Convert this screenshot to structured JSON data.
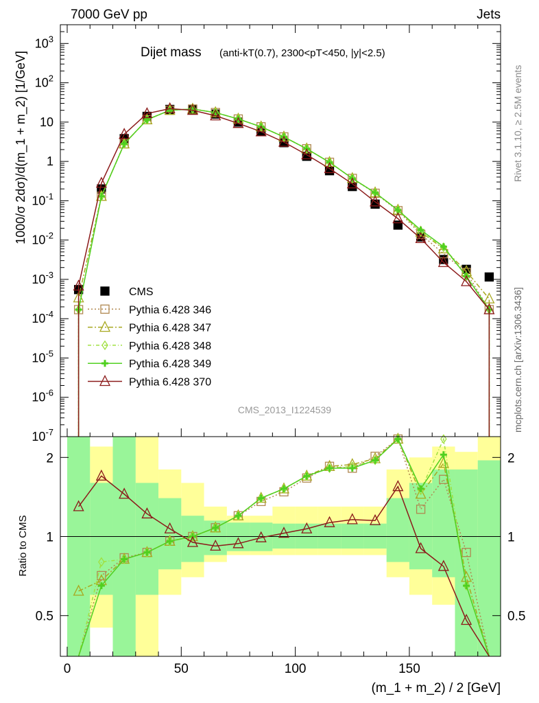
{
  "header": {
    "left": "7000 GeV pp",
    "right": "Jets"
  },
  "side": {
    "rivet": "Rivet 3.1.10, ≥ 2.5M events",
    "mcplots": "mcplots.cern.ch [arXiv:1306.3436]"
  },
  "colors": {
    "cms": "#000000",
    "p346": "#b08850",
    "p347": "#a8a820",
    "p348": "#a0e040",
    "p349": "#50d020",
    "p370": "#8b1a1a",
    "band_inner": "#99f599",
    "band_outer": "#ffff99"
  },
  "chart_data": [
    {
      "type": "line",
      "title": "Dijet mass",
      "subtitle": "(anti-kT(0.7), 2300<pT<450, |y|<2.5)",
      "watermark": "CMS_2013_I1224539",
      "xlabel": "",
      "ylabel": "1000/σ 2dσ)/d(m_1 + m_2) [1/GeV]",
      "xlim": [
        -3,
        190
      ],
      "ylim": [
        1e-07,
        3000
      ],
      "yscale": "log",
      "yticks_exp": [
        -7,
        -6,
        -5,
        -4,
        -3,
        -2,
        -1,
        0,
        1,
        2,
        3
      ],
      "x": [
        5,
        15,
        25,
        35,
        45,
        55,
        65,
        75,
        85,
        95,
        105,
        115,
        125,
        135,
        145,
        155,
        165,
        175,
        185
      ],
      "series": [
        {
          "name": "CMS",
          "style": "data",
          "values": [
            0.00055,
            0.2,
            3.8,
            14,
            21,
            21,
            16,
            10,
            5.8,
            3.0,
            1.35,
            0.58,
            0.23,
            0.082,
            0.024,
            0.012,
            0.0032,
            0.0018,
            0.00115
          ]
        },
        {
          "name": "Pythia 6.428 346",
          "style": "dotted",
          "marker": "square",
          "values": [
            0.00017,
            0.13,
            2.8,
            11.5,
            20,
            21.5,
            17.5,
            12,
            7.6,
            4.2,
            2.1,
            0.95,
            0.37,
            0.155,
            0.056,
            0.014,
            0.0045,
            0.0015,
            0.00017
          ]
        },
        {
          "name": "Pythia 6.428 347",
          "style": "dashdot",
          "marker": "triangle",
          "values": [
            0.00034,
            0.13,
            2.8,
            11.5,
            20,
            21.5,
            17.5,
            12,
            7.6,
            4.2,
            2.1,
            0.95,
            0.37,
            0.16,
            0.058,
            0.016,
            0.006,
            0.0016,
            0.00032
          ]
        },
        {
          "name": "Pythia 6.428 348",
          "style": "dashdot2",
          "marker": "diamond",
          "values": [
            0.00017,
            0.13,
            2.8,
            11.5,
            20,
            21.5,
            17.5,
            12,
            7.6,
            4.2,
            2.1,
            0.95,
            0.37,
            0.16,
            0.058,
            0.016,
            0.0065,
            0.0012,
            0.00017
          ]
        },
        {
          "name": "Pythia 6.428 349",
          "style": "solid",
          "marker": "cross",
          "values": [
            0.00017,
            0.13,
            2.8,
            11.5,
            20,
            21.5,
            17.5,
            12,
            7.6,
            4.2,
            2.1,
            0.95,
            0.37,
            0.16,
            0.058,
            0.018,
            0.0068,
            0.0012,
            0.00017
          ]
        },
        {
          "name": "Pythia 6.428 370",
          "style": "solid",
          "marker": "triangle",
          "values": [
            0.00068,
            0.28,
            4.9,
            16.5,
            22,
            20,
            14.5,
            9.3,
            5.7,
            3.1,
            1.48,
            0.66,
            0.27,
            0.094,
            0.035,
            0.011,
            0.0027,
            0.00088,
            0.00017
          ]
        }
      ]
    },
    {
      "type": "line",
      "xlabel": "(m_1 + m_2) / 2 [GeV]",
      "ylabel": "Ratio to CMS",
      "xlim": [
        -3,
        190
      ],
      "ylim": [
        0.35,
        2.4
      ],
      "yscale": "log",
      "xticks": [
        0,
        50,
        100,
        150
      ],
      "yticks": [
        0.5,
        1,
        2
      ],
      "x": [
        5,
        15,
        25,
        35,
        45,
        55,
        65,
        75,
        85,
        95,
        105,
        115,
        125,
        135,
        145,
        155,
        165,
        175,
        185
      ],
      "band_edges": [
        0,
        10,
        20,
        30,
        40,
        50,
        60,
        70,
        80,
        90,
        100,
        110,
        120,
        130,
        140,
        150,
        160,
        170,
        180,
        190
      ],
      "band_inner": [
        [
          0.35,
          2.4
        ],
        [
          0.6,
          1.6
        ],
        [
          0.35,
          2.4
        ],
        [
          0.6,
          1.6
        ],
        [
          0.75,
          1.4
        ],
        [
          0.8,
          1.2
        ],
        [
          0.85,
          1.15
        ],
        [
          0.88,
          1.13
        ],
        [
          0.88,
          1.13
        ],
        [
          0.9,
          1.12
        ],
        [
          0.9,
          1.12
        ],
        [
          0.9,
          1.12
        ],
        [
          0.9,
          1.12
        ],
        [
          0.9,
          1.12
        ],
        [
          0.8,
          1.4
        ],
        [
          0.75,
          1.6
        ],
        [
          0.7,
          1.8
        ],
        [
          0.35,
          1.8
        ],
        [
          0.35,
          1.95
        ]
      ],
      "band_outer": [
        [
          0.35,
          2.4
        ],
        [
          0.45,
          2.2
        ],
        [
          0.35,
          2.4
        ],
        [
          0.35,
          2.4
        ],
        [
          0.6,
          1.8
        ],
        [
          0.7,
          1.6
        ],
        [
          0.8,
          1.3
        ],
        [
          0.85,
          1.2
        ],
        [
          0.85,
          1.2
        ],
        [
          0.85,
          1.3
        ],
        [
          0.85,
          1.3
        ],
        [
          0.85,
          1.3
        ],
        [
          0.85,
          1.3
        ],
        [
          0.85,
          1.3
        ],
        [
          0.7,
          1.8
        ],
        [
          0.6,
          2.0
        ],
        [
          0.55,
          2.2
        ],
        [
          0.35,
          2.1
        ],
        [
          0.35,
          2.4
        ]
      ],
      "series": [
        {
          "name": "Pythia 6.428 346",
          "style": "dotted",
          "marker": "square",
          "values": [
            0.3,
            0.71,
            0.83,
            0.87,
            0.96,
            1.0,
            1.08,
            1.2,
            1.36,
            1.48,
            1.67,
            1.85,
            1.82,
            2.02,
            2.35,
            1.27,
            1.65,
            0.87,
            0.3
          ]
        },
        {
          "name": "Pythia 6.428 347",
          "style": "dashdot",
          "marker": "triangle",
          "values": [
            0.62,
            0.68,
            0.82,
            0.87,
            0.96,
            1.0,
            1.08,
            1.2,
            1.4,
            1.52,
            1.7,
            1.85,
            1.88,
            1.98,
            2.35,
            1.45,
            1.9,
            0.7,
            0.3
          ]
        },
        {
          "name": "Pythia 6.428 348",
          "style": "dashdot2",
          "marker": "diamond",
          "values": [
            0.3,
            0.8,
            0.82,
            0.87,
            0.96,
            1.0,
            1.08,
            1.2,
            1.4,
            1.52,
            1.7,
            1.82,
            1.85,
            1.95,
            2.35,
            1.5,
            2.35,
            0.65,
            0.3
          ]
        },
        {
          "name": "Pythia 6.428 349",
          "style": "solid",
          "marker": "cross",
          "values": [
            0.3,
            0.65,
            0.82,
            0.87,
            0.96,
            1.0,
            1.08,
            1.2,
            1.4,
            1.52,
            1.7,
            1.82,
            1.82,
            1.95,
            2.35,
            1.52,
            2.05,
            0.65,
            0.3
          ]
        },
        {
          "name": "Pythia 6.428 370",
          "style": "solid",
          "marker": "triangle",
          "values": [
            1.3,
            1.7,
            1.45,
            1.22,
            1.07,
            0.95,
            0.92,
            0.94,
            0.99,
            1.03,
            1.07,
            1.13,
            1.16,
            1.15,
            1.55,
            0.9,
            0.77,
            0.48,
            0.3
          ]
        }
      ]
    }
  ]
}
